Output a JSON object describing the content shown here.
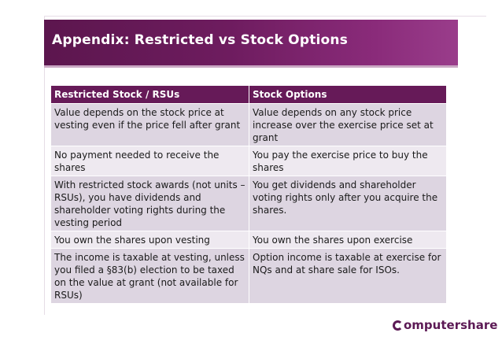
{
  "slide": {
    "title": "Appendix: Restricted vs Stock Options"
  },
  "table": {
    "headers": [
      "Restricted Stock / RSUs",
      "Stock Options"
    ],
    "rows": [
      [
        "Value depends on the stock price at vesting even if the price fell after grant",
        "Value depends on any stock price increase over the exercise price set at grant"
      ],
      [
        "No payment needed to receive the shares",
        "You pay the exercise price to buy the shares"
      ],
      [
        "With restricted stock awards (not units – RSUs), you have dividends and shareholder voting rights during the vesting period",
        "You get dividends and shareholder voting rights only after you acquire the shares."
      ],
      [
        "You own the shares upon vesting",
        "You own the shares upon exercise"
      ],
      [
        "The income is taxable at vesting, unless you filed a §83(b) election to be taxed on the value at grant (not available for RSUs)",
        "Option income is taxable at exercise for NQs and at share sale for ISOs."
      ]
    ]
  },
  "logo": {
    "text": "omputershare",
    "icon": "computershare-c-icon"
  },
  "colors": {
    "title_bar": "#6e1c5f",
    "header_row": "#661a58",
    "row_dark": "#ddd5e1",
    "row_light": "#eee9f0"
  }
}
